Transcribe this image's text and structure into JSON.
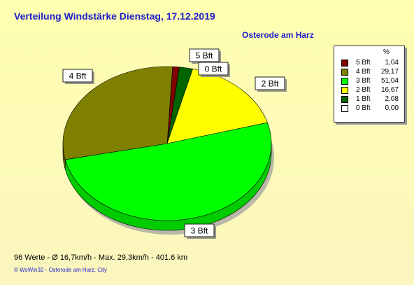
{
  "title": "Verteilung Windstärke  Dienstag, 17.12.2019",
  "subtitle": "Osterode am Harz",
  "legend": {
    "header": "%",
    "rows": [
      {
        "label": "5 Bft",
        "value": "1,04"
      },
      {
        "label": "4 Bft",
        "value": "29,17"
      },
      {
        "label": "3 Bft",
        "value": "51,04"
      },
      {
        "label": "2 Bft",
        "value": "16,67"
      },
      {
        "label": "1 Bft",
        "value": "2,08"
      },
      {
        "label": "0 Bft",
        "value": "0,00"
      }
    ]
  },
  "footer": "96 Werte   -   Ø 16,7km/h  -  Max. 29,3km/h   -   401.6 km",
  "credit": "© WsWin32  -  Osterode am Harz, City",
  "chart_data": {
    "type": "pie",
    "slices": [
      {
        "label": "5 Bft",
        "value": 1.04,
        "color": "#800000"
      },
      {
        "label": "1 Bft",
        "value": 2.08,
        "color": "#006400"
      },
      {
        "label": "0 Bft",
        "value": 0.0,
        "color": "#ffffff"
      },
      {
        "label": "2 Bft",
        "value": 16.67,
        "color": "#ffff00"
      },
      {
        "label": "3 Bft",
        "value": 51.04,
        "color": "#00ff00"
      },
      {
        "label": "4 Bft",
        "value": 29.17,
        "color": "#808000"
      }
    ],
    "callouts": [
      "5 Bft",
      "0 Bft",
      "2 Bft",
      "3 Bft",
      "4 Bft"
    ]
  }
}
